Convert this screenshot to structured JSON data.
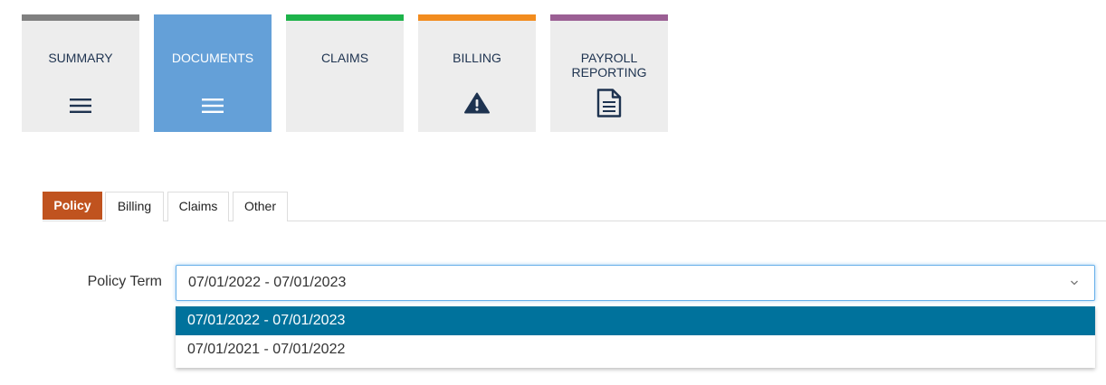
{
  "tiles": [
    {
      "label": "SUMMARY",
      "color": "#808080",
      "icon": "hamburger-icon"
    },
    {
      "label": "DOCUMENTS",
      "color": "#64a0d8",
      "icon": "hamburger-icon"
    },
    {
      "label": "CLAIMS",
      "color": "#1db34a",
      "icon": ""
    },
    {
      "label": "BILLING",
      "color": "#f28c1e",
      "icon": "warning-icon"
    },
    {
      "label": "PAYROLL\nREPORTING",
      "color": "#9b5f94",
      "icon": "document-icon"
    }
  ],
  "active_tile": "DOCUMENTS",
  "tabs": [
    {
      "label": "Policy",
      "active": true
    },
    {
      "label": "Billing",
      "active": false
    },
    {
      "label": "Claims",
      "active": false
    },
    {
      "label": "Other",
      "active": false
    }
  ],
  "policy_term": {
    "label": "Policy Term",
    "value": "07/01/2022 - 07/01/2023",
    "options": [
      "07/01/2022 - 07/01/2023",
      "07/01/2021 - 07/01/2022"
    ],
    "selected_index": 0
  },
  "colors": {
    "active_tab": "#c0531f",
    "dropdown_highlight": "#00729c",
    "icon_navy": "#1e3350"
  }
}
